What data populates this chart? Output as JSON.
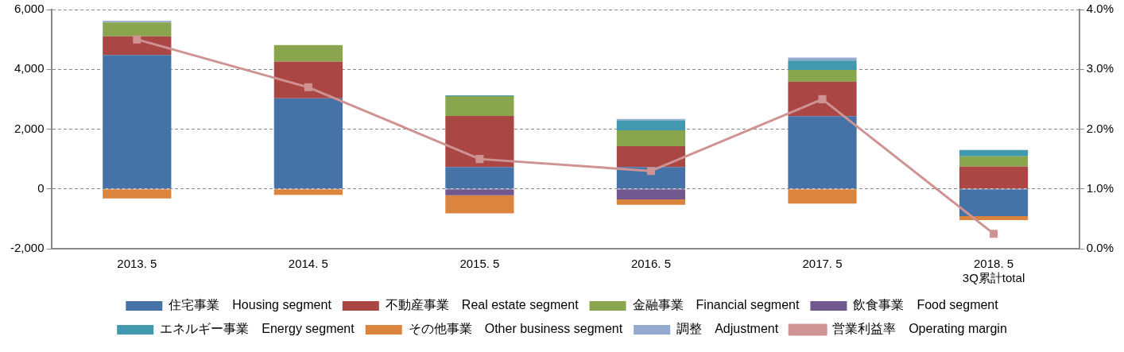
{
  "chart_data": {
    "type": "bar",
    "stacked": true,
    "categories": [
      "2013. 5",
      "2014. 5",
      "2015. 5",
      "2016. 5",
      "2017. 5",
      "2018. 5\n3Q累計total"
    ],
    "series": [
      {
        "name": "住宅事業　Housing segment",
        "color": "#4572a7",
        "values": [
          4480,
          3030,
          730,
          730,
          2430,
          -910
        ]
      },
      {
        "name": "不動産事業　Real estate segment",
        "color": "#aa4643",
        "values": [
          620,
          1230,
          1710,
          700,
          1150,
          750
        ]
      },
      {
        "name": "金融事業　Financial segment",
        "color": "#89a54e",
        "values": [
          470,
          550,
          660,
          530,
          400,
          340
        ]
      },
      {
        "name": "飲食事業　Food segment",
        "color": "#71588f",
        "values": [
          null,
          null,
          -210,
          -350,
          null,
          null
        ]
      },
      {
        "name": "エネルギー事業　Energy segment",
        "color": "#4198af",
        "values": [
          null,
          null,
          30,
          330,
          310,
          210
        ]
      },
      {
        "name": "その他事業　Other business segment",
        "color": "#db843d",
        "values": [
          -320,
          -200,
          -610,
          -180,
          -490,
          -130
        ]
      },
      {
        "name": "調整　Adjustment",
        "color": "#93a9cf",
        "values": [
          50,
          null,
          null,
          50,
          100,
          null
        ]
      },
      {
        "name": "営業利益率　Operating margin",
        "type": "line",
        "axis": "y2",
        "color": "#d09393",
        "marker": "square",
        "values": [
          3.5,
          2.7,
          1.5,
          1.3,
          2.5,
          0.25
        ]
      }
    ],
    "ylim": [
      -2000,
      6000
    ],
    "yticks": [
      {
        "value": -2000,
        "label": "-2,000"
      },
      {
        "value": 0,
        "label": "0"
      },
      {
        "value": 2000,
        "label": "2,000"
      },
      {
        "value": 4000,
        "label": "4,000"
      },
      {
        "value": 6000,
        "label": "6,000"
      }
    ],
    "y2lim": [
      0,
      4
    ],
    "y2ticks": [
      {
        "value": 0,
        "label": "0.0%"
      },
      {
        "value": 1,
        "label": "1.0%"
      },
      {
        "value": 2,
        "label": "2.0%"
      },
      {
        "value": 3,
        "label": "3.0%"
      },
      {
        "value": 4,
        "label": "4.0%"
      }
    ],
    "grid": "y",
    "legend": "bottom"
  }
}
